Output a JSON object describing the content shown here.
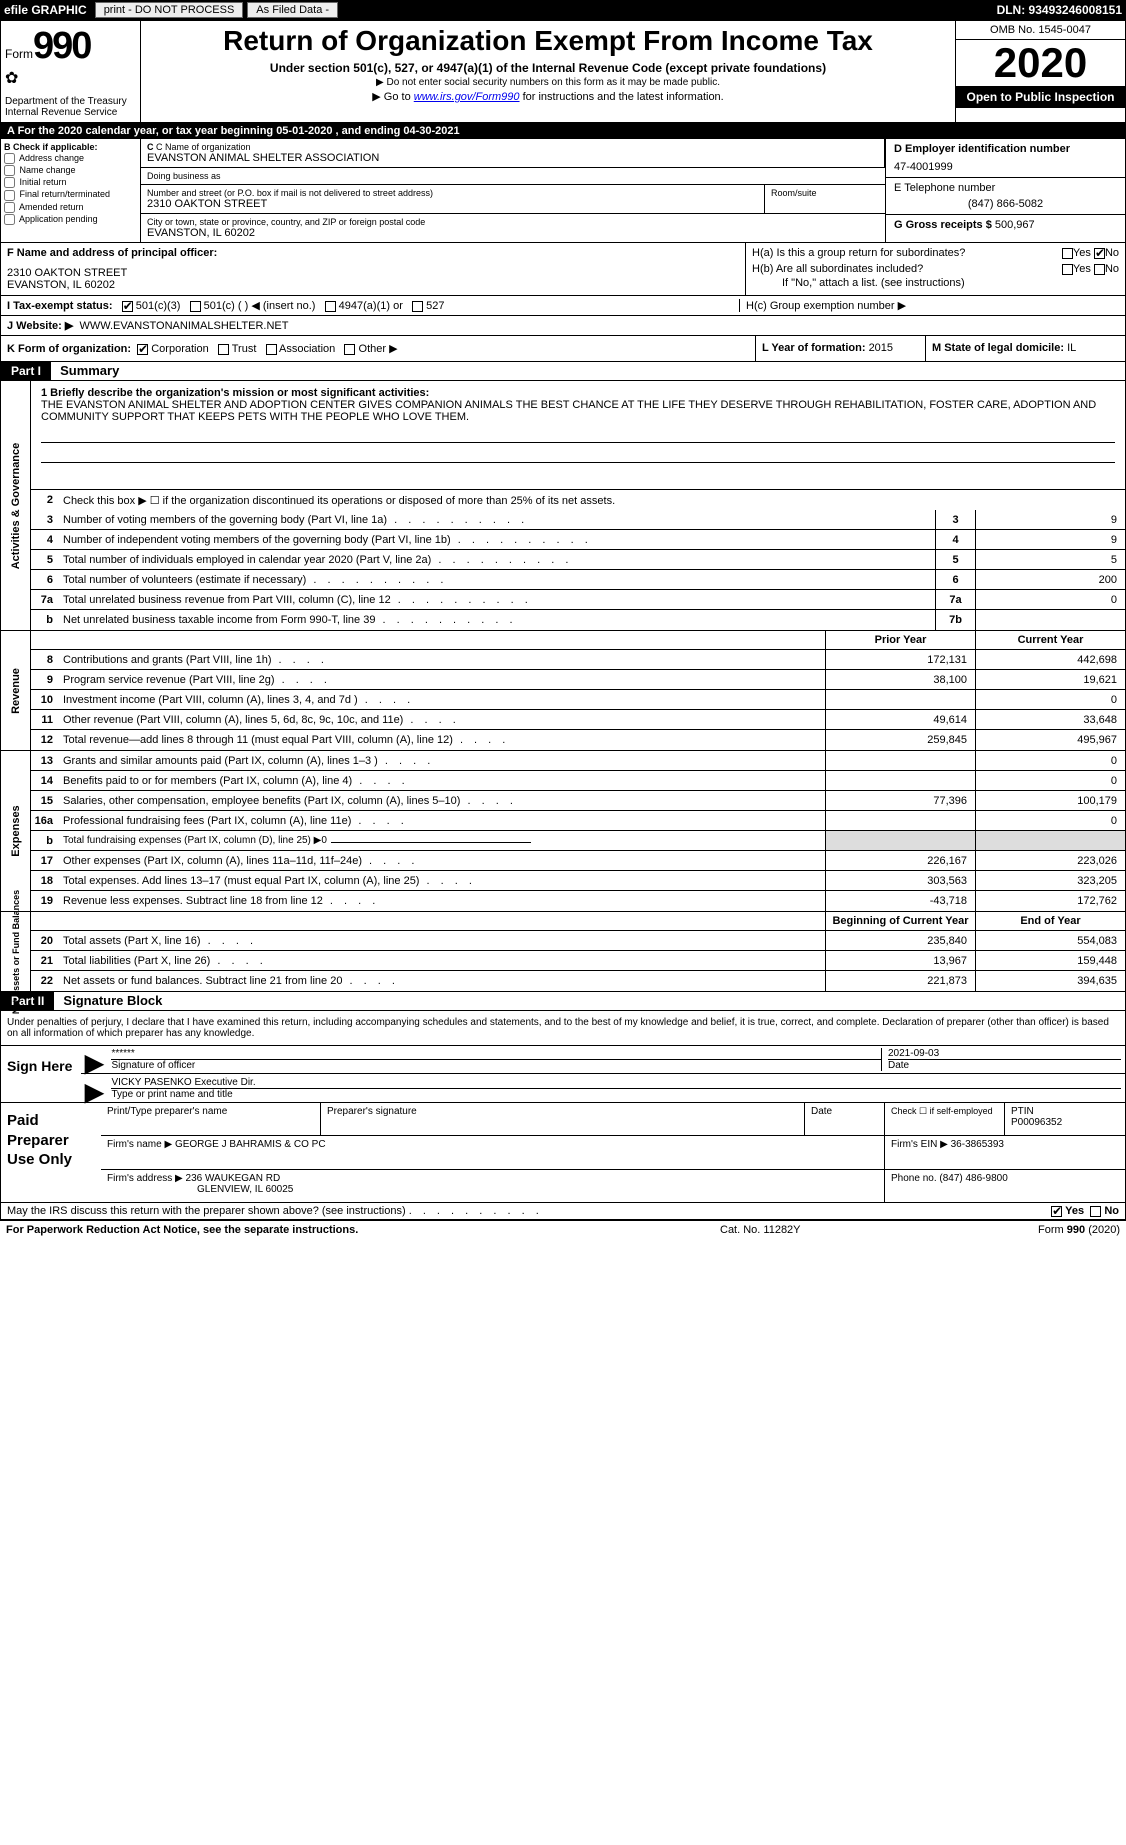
{
  "topbar": {
    "efile": "efile GRAPHIC",
    "print": "print - DO NOT PROCESS",
    "asfiled": "As Filed Data -",
    "dln": "DLN: 93493246008151"
  },
  "header": {
    "form_label": "Form",
    "form_number": "990",
    "dept": "Department of the Treasury",
    "irs": "Internal Revenue Service",
    "title": "Return of Organization Exempt From Income Tax",
    "subtitle": "Under section 501(c), 527, or 4947(a)(1) of the Internal Revenue Code (except private foundations)",
    "note1": "▶ Do not enter social security numbers on this form as it may be made public.",
    "note2_pre": "▶ Go to ",
    "note2_link": "www.irs.gov/Form990",
    "note2_post": " for instructions and the latest information.",
    "omb": "OMB No. 1545-0047",
    "year": "2020",
    "inspect": "Open to Public Inspection"
  },
  "row_a": "A  For the 2020 calendar year, or tax year beginning 05-01-2020  , and ending 04-30-2021",
  "section_b": {
    "check_label": "B Check if applicable:",
    "opts": [
      "Address change",
      "Name change",
      "Initial return",
      "Final return/terminated",
      "Amended return",
      "Application pending"
    ],
    "c_name_lbl": "C Name of organization",
    "c_name": "EVANSTON ANIMAL SHELTER ASSOCIATION",
    "dba_lbl": "Doing business as",
    "addr_lbl": "Number and street (or P.O. box if mail is not delivered to street address)",
    "addr": "2310 OAKTON STREET",
    "room_lbl": "Room/suite",
    "city_lbl": "City or town, state or province, country, and ZIP or foreign postal code",
    "city": "EVANSTON, IL  60202",
    "d_lbl": "D Employer identification number",
    "d_val": "47-4001999",
    "e_lbl": "E Telephone number",
    "e_val": "(847) 866-5082",
    "g_lbl": "G Gross receipts $ ",
    "g_val": "500,967"
  },
  "officer": {
    "f_lbl": "F  Name and address of principal officer:",
    "addr1": "2310 OAKTON STREET",
    "addr2": "EVANSTON, IL  60202",
    "ha": "H(a)  Is this a group return for subordinates?",
    "hb": "H(b)  Are all subordinates included?",
    "hnote": "If \"No,\" attach a list. (see instructions)",
    "hc": "H(c)  Group exemption number ▶",
    "yes": "Yes",
    "no": "No"
  },
  "status": {
    "i_lbl": "I  Tax-exempt status:",
    "o1": "501(c)(3)",
    "o2": "501(c) (  ) ◀ (insert no.)",
    "o3": "4947(a)(1) or",
    "o4": "527",
    "j_lbl": "J  Website: ▶",
    "j_val": "WWW.EVANSTONANIMALSHELTER.NET"
  },
  "korg": {
    "k_lbl": "K Form of organization:",
    "corp": "Corporation",
    "trust": "Trust",
    "assoc": "Association",
    "other": "Other ▶",
    "l_lbl": "L Year of formation: ",
    "l_val": "2015",
    "m_lbl": "M State of legal domicile: ",
    "m_val": "IL"
  },
  "parts": {
    "p1": "Part I",
    "p1t": "Summary",
    "p2": "Part II",
    "p2t": "Signature Block"
  },
  "mission": {
    "lbl": "1  Briefly describe the organization's mission or most significant activities:",
    "text": "THE EVANSTON ANIMAL SHELTER AND ADOPTION CENTER GIVES COMPANION ANIMALS THE BEST CHANCE AT THE LIFE THEY DESERVE THROUGH REHABILITATION, FOSTER CARE, ADOPTION AND COMMUNITY SUPPORT THAT KEEPS PETS WITH THE PEOPLE WHO LOVE THEM."
  },
  "line2": "Check this box ▶ ☐ if the organization discontinued its operations or disposed of more than 25% of its net assets.",
  "sidebars": {
    "s1": "Activities & Governance",
    "s2": "Revenue",
    "s3": "Expenses",
    "s4": "Net Assets or Fund Balances"
  },
  "lines_gov": [
    {
      "n": "3",
      "t": "Number of voting members of the governing body (Part VI, line 1a)",
      "box": "3",
      "v": "9"
    },
    {
      "n": "4",
      "t": "Number of independent voting members of the governing body (Part VI, line 1b)",
      "box": "4",
      "v": "9"
    },
    {
      "n": "5",
      "t": "Total number of individuals employed in calendar year 2020 (Part V, line 2a)",
      "box": "5",
      "v": "5"
    },
    {
      "n": "6",
      "t": "Total number of volunteers (estimate if necessary)",
      "box": "6",
      "v": "200"
    },
    {
      "n": "7a",
      "t": "Total unrelated business revenue from Part VIII, column (C), line 12",
      "box": "7a",
      "v": "0"
    },
    {
      "n": "b",
      "t": "Net unrelated business taxable income from Form 990-T, line 39",
      "box": "7b",
      "v": ""
    }
  ],
  "col_hdrs": {
    "prior": "Prior Year",
    "current": "Current Year",
    "boy": "Beginning of Current Year",
    "eoy": "End of Year"
  },
  "lines_rev": [
    {
      "n": "8",
      "t": "Contributions and grants (Part VIII, line 1h)",
      "p": "172,131",
      "c": "442,698"
    },
    {
      "n": "9",
      "t": "Program service revenue (Part VIII, line 2g)",
      "p": "38,100",
      "c": "19,621"
    },
    {
      "n": "10",
      "t": "Investment income (Part VIII, column (A), lines 3, 4, and 7d )",
      "p": "",
      "c": "0"
    },
    {
      "n": "11",
      "t": "Other revenue (Part VIII, column (A), lines 5, 6d, 8c, 9c, 10c, and 11e)",
      "p": "49,614",
      "c": "33,648"
    },
    {
      "n": "12",
      "t": "Total revenue—add lines 8 through 11 (must equal Part VIII, column (A), line 12)",
      "p": "259,845",
      "c": "495,967"
    }
  ],
  "lines_exp": [
    {
      "n": "13",
      "t": "Grants and similar amounts paid (Part IX, column (A), lines 1–3 )",
      "p": "",
      "c": "0"
    },
    {
      "n": "14",
      "t": "Benefits paid to or for members (Part IX, column (A), line 4)",
      "p": "",
      "c": "0"
    },
    {
      "n": "15",
      "t": "Salaries, other compensation, employee benefits (Part IX, column (A), lines 5–10)",
      "p": "77,396",
      "c": "100,179"
    },
    {
      "n": "16a",
      "t": "Professional fundraising fees (Part IX, column (A), line 11e)",
      "p": "",
      "c": "0"
    },
    {
      "n": "b",
      "t": "Total fundraising expenses (Part IX, column (D), line 25) ▶0",
      "p": "",
      "c": "",
      "noval": true
    },
    {
      "n": "17",
      "t": "Other expenses (Part IX, column (A), lines 11a–11d, 11f–24e)",
      "p": "226,167",
      "c": "223,026"
    },
    {
      "n": "18",
      "t": "Total expenses. Add lines 13–17 (must equal Part IX, column (A), line 25)",
      "p": "303,563",
      "c": "323,205"
    },
    {
      "n": "19",
      "t": "Revenue less expenses. Subtract line 18 from line 12",
      "p": "-43,718",
      "c": "172,762"
    }
  ],
  "lines_net": [
    {
      "n": "20",
      "t": "Total assets (Part X, line 16)",
      "p": "235,840",
      "c": "554,083"
    },
    {
      "n": "21",
      "t": "Total liabilities (Part X, line 26)",
      "p": "13,967",
      "c": "159,448"
    },
    {
      "n": "22",
      "t": "Net assets or fund balances. Subtract line 21 from line 20",
      "p": "221,873",
      "c": "394,635"
    }
  ],
  "sig": {
    "declaration": "Under penalties of perjury, I declare that I have examined this return, including accompanying schedules and statements, and to the best of my knowledge and belief, it is true, correct, and complete. Declaration of preparer (other than officer) is based on all information of which preparer has any knowledge.",
    "sign_here": "Sign Here",
    "stars": "******",
    "sig_officer": "Signature of officer",
    "date_val": "2021-09-03",
    "date_lbl": "Date",
    "name": "VICKY PASENKO  Executive Dir.",
    "name_lbl": "Type or print name and title",
    "paid": "Paid Preparer Use Only",
    "prep_name_lbl": "Print/Type preparer's name",
    "prep_sig_lbl": "Preparer's signature",
    "prep_date_lbl": "Date",
    "check_if": "Check ☐ if self-employed",
    "ptin_lbl": "PTIN",
    "ptin": "P00096352",
    "firm_name_lbl": "Firm's name    ▶",
    "firm_name": "GEORGE J BAHRAMIS & CO PC",
    "firm_ein_lbl": "Firm's EIN ▶",
    "firm_ein": "36-3865393",
    "firm_addr_lbl": "Firm's address ▶",
    "firm_addr1": "236 WAUKEGAN RD",
    "firm_addr2": "GLENVIEW, IL  60025",
    "phone_lbl": "Phone no. ",
    "phone": "(847) 486-9800"
  },
  "footer": {
    "q": "May the IRS discuss this return with the preparer shown above? (see instructions)",
    "yes": "Yes",
    "no": "No",
    "paperwork": "For Paperwork Reduction Act Notice, see the separate instructions.",
    "cat": "Cat. No. 11282Y",
    "form": "Form 990 (2020)"
  }
}
